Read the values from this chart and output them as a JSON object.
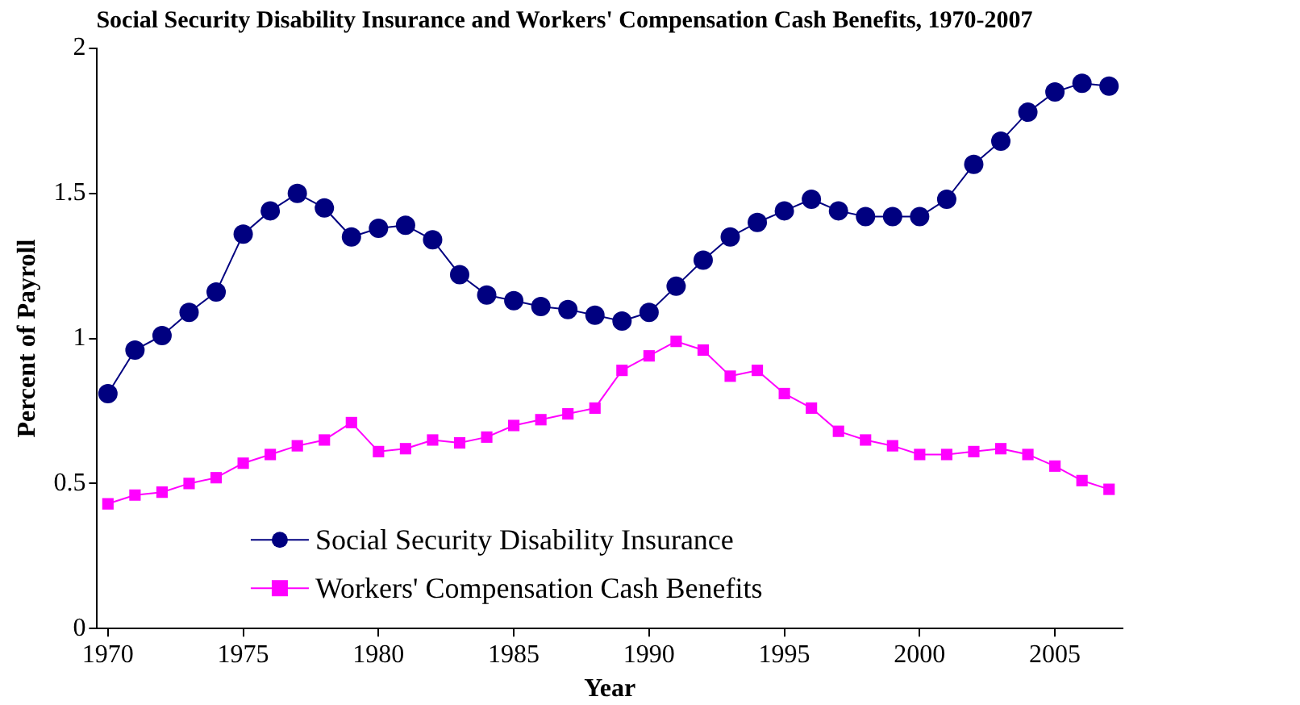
{
  "chart_data": {
    "type": "line",
    "title": "Social Security Disability Insurance and Workers' Compensation Cash Benefits, 1970-2007",
    "xlabel": "Year",
    "ylabel": "Percent of Payroll",
    "x": [
      1970,
      1971,
      1972,
      1973,
      1974,
      1975,
      1976,
      1977,
      1978,
      1979,
      1980,
      1981,
      1982,
      1983,
      1984,
      1985,
      1986,
      1987,
      1988,
      1989,
      1990,
      1991,
      1992,
      1993,
      1994,
      1995,
      1996,
      1997,
      1998,
      1999,
      2000,
      2001,
      2002,
      2003,
      2004,
      2005,
      2006,
      2007
    ],
    "series": [
      {
        "name": "Social Security Disability Insurance",
        "color": "#000080",
        "marker": "circle",
        "values": [
          0.81,
          0.96,
          1.01,
          1.09,
          1.16,
          1.36,
          1.44,
          1.5,
          1.45,
          1.35,
          1.38,
          1.39,
          1.34,
          1.22,
          1.15,
          1.13,
          1.11,
          1.1,
          1.08,
          1.06,
          1.09,
          1.18,
          1.27,
          1.35,
          1.4,
          1.44,
          1.48,
          1.44,
          1.42,
          1.42,
          1.42,
          1.48,
          1.6,
          1.68,
          1.78,
          1.85,
          1.88,
          1.87
        ]
      },
      {
        "name": "Workers' Compensation Cash Benefits",
        "color": "#ff00ff",
        "marker": "square",
        "values": [
          0.43,
          0.46,
          0.47,
          0.5,
          0.52,
          0.57,
          0.6,
          0.63,
          0.65,
          0.71,
          0.61,
          0.62,
          0.65,
          0.64,
          0.66,
          0.7,
          0.72,
          0.74,
          0.76,
          0.89,
          0.94,
          0.99,
          0.96,
          0.87,
          0.89,
          0.81,
          0.76,
          0.68,
          0.65,
          0.63,
          0.6,
          0.6,
          0.61,
          0.62,
          0.6,
          0.56,
          0.51,
          0.48
        ]
      }
    ],
    "xlim": [
      1969.6,
      2007.5
    ],
    "xticks": [
      1970,
      1975,
      1980,
      1985,
      1990,
      1995,
      2000,
      2005
    ],
    "ylim": [
      0,
      2
    ],
    "yticks": [
      0,
      0.5,
      1,
      1.5,
      2
    ],
    "grid": false,
    "legend": "bottom",
    "line_style": "solid"
  }
}
